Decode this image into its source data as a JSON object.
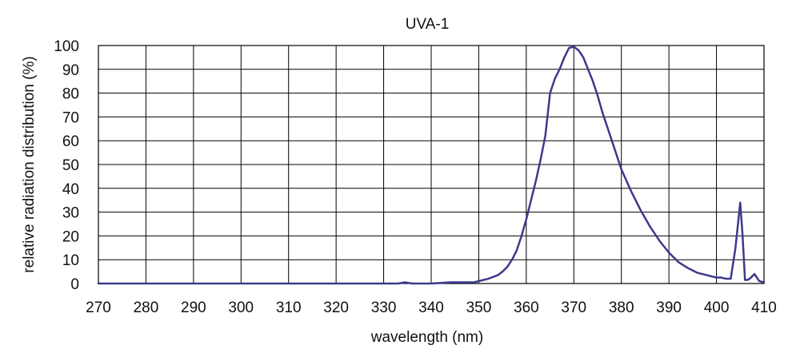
{
  "chart_data": {
    "type": "line",
    "title": "UVA-1",
    "xlabel": "wavelength (nm)",
    "ylabel": "relative radiation distribution (%)",
    "xlim": [
      270,
      410
    ],
    "ylim": [
      0,
      100
    ],
    "x_ticks": [
      270,
      280,
      290,
      300,
      310,
      320,
      330,
      340,
      350,
      360,
      370,
      380,
      390,
      400,
      410
    ],
    "y_ticks": [
      0,
      10,
      20,
      30,
      40,
      50,
      60,
      70,
      80,
      90,
      100
    ],
    "grid": true,
    "line_color": "#3d3a8c",
    "series": [
      {
        "x": [
          270,
          280,
          290,
          300,
          310,
          320,
          330,
          333,
          334.5,
          336,
          340,
          344,
          346,
          348,
          349,
          350,
          352,
          354,
          355,
          356,
          357,
          358,
          359,
          360,
          361,
          362,
          363,
          364,
          365,
          366,
          367,
          368,
          369,
          370,
          371,
          372,
          373,
          374,
          375,
          376,
          377,
          378,
          379,
          380,
          382,
          384,
          386,
          388,
          390,
          392,
          394,
          396,
          398,
          400,
          401,
          402,
          403,
          404,
          405,
          405.5,
          406,
          406.5,
          407,
          407.5,
          408,
          409,
          410
        ],
        "y": [
          0,
          0,
          0,
          0,
          0,
          0,
          0,
          0,
          0.5,
          0,
          0,
          0.5,
          0.5,
          0.5,
          0.5,
          1,
          2,
          3.5,
          5,
          7,
          10,
          14,
          20,
          27,
          35,
          43,
          52,
          62,
          80,
          86,
          90,
          95,
          99,
          99.5,
          98,
          95,
          90,
          85,
          79,
          72,
          66,
          60,
          54,
          48,
          39,
          31,
          24,
          18,
          13,
          9,
          6.5,
          4.5,
          3.5,
          2.5,
          2.5,
          2,
          2,
          15,
          34,
          20,
          1.5,
          1.5,
          2,
          3,
          4,
          1,
          0.5
        ]
      }
    ]
  }
}
